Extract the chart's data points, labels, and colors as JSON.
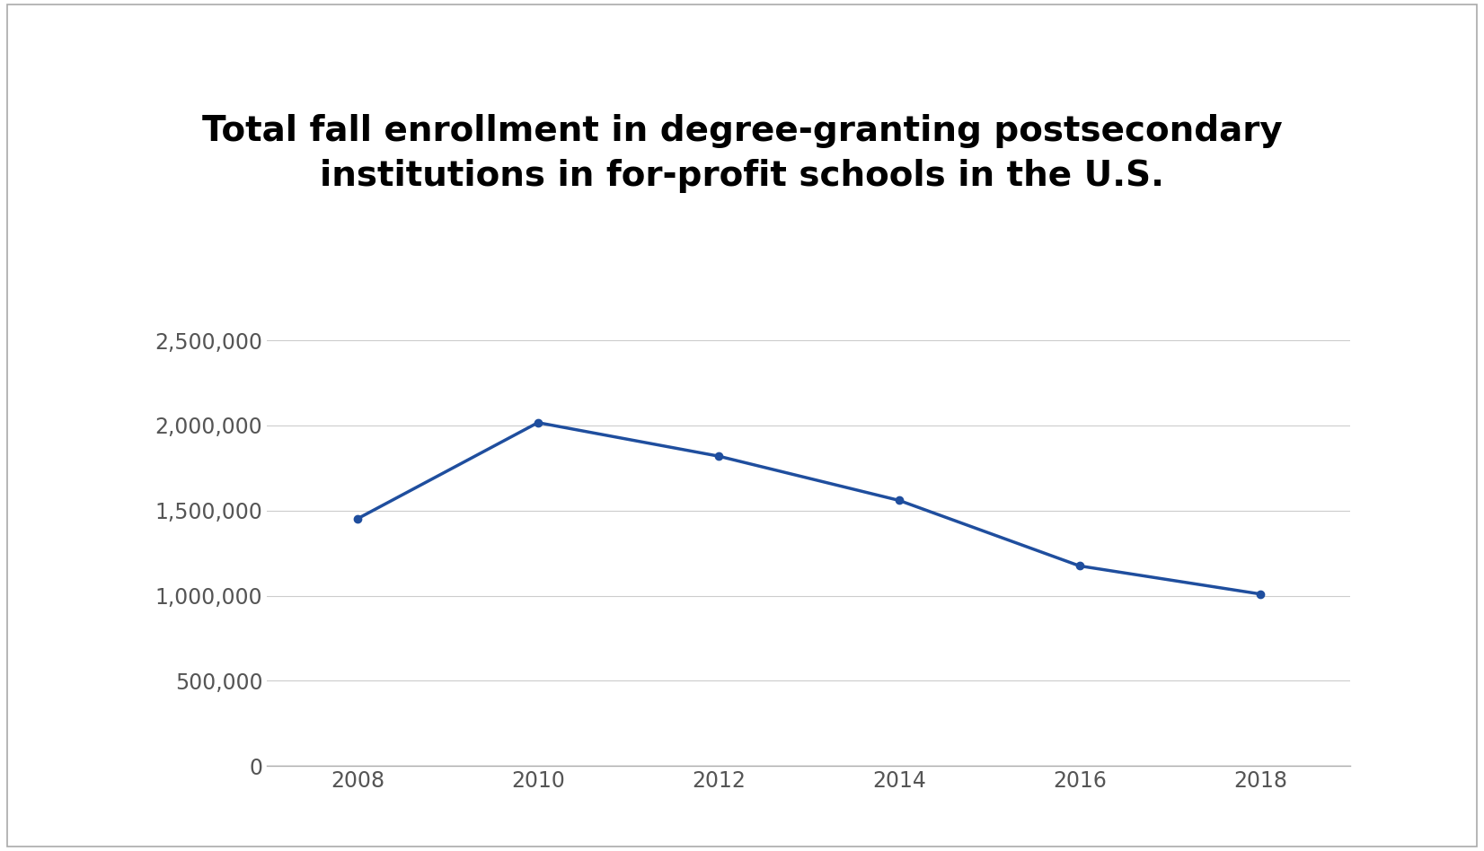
{
  "title_line1": "Total fall enrollment in degree-granting postsecondary",
  "title_line2": "institutions in for-profit schools in the U.S.",
  "years": [
    2008,
    2010,
    2012,
    2014,
    2016,
    2018
  ],
  "values": [
    1452000,
    2017000,
    1820000,
    1560000,
    1175000,
    1010000
  ],
  "line_color": "#1f4e9e",
  "marker": "o",
  "marker_size": 6,
  "line_width": 2.5,
  "ylim": [
    0,
    2750000
  ],
  "yticks": [
    0,
    500000,
    1000000,
    1500000,
    2000000,
    2500000
  ],
  "ytick_labels": [
    "0",
    "500,000",
    "1,000,000",
    "1,500,000",
    "2,000,000",
    "2,500,000"
  ],
  "xticks": [
    2008,
    2010,
    2012,
    2014,
    2016,
    2018
  ],
  "background_color": "#ffffff",
  "grid_color": "#cccccc",
  "title_fontsize": 28,
  "tick_fontsize": 17,
  "tick_color": "#555555",
  "border_color": "#aaaaaa"
}
